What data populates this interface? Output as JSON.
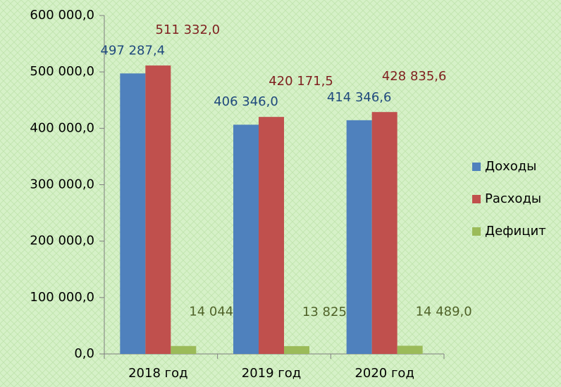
{
  "chart_data": {
    "type": "bar",
    "categories": [
      "2018 год",
      "2019 год",
      "2020 год"
    ],
    "series": [
      {
        "name": "Доходы",
        "color": "#4f81bd",
        "label_color": "#1f497d",
        "values": [
          497287.4,
          406346.0,
          414346.6
        ],
        "value_labels": [
          "497 287,4",
          "406 346,0",
          "414 346,6"
        ]
      },
      {
        "name": "Расходы",
        "color": "#c0504d",
        "label_color": "#7f1f1f",
        "values": [
          511332.0,
          420171.5,
          428835.6
        ],
        "value_labels": [
          "511 332,0",
          "420 171,5",
          "428 835,6"
        ]
      },
      {
        "name": "Дефицит",
        "color": "#9bbb59",
        "label_color": "#4f6228",
        "values": [
          14044.6,
          13825.5,
          14489.0
        ],
        "value_labels": [
          "14 044,6",
          "13 825,5",
          "14 489,0"
        ]
      }
    ],
    "ylim": [
      0,
      600000
    ],
    "yticks": [
      {
        "value": 0,
        "label": "0,0"
      },
      {
        "value": 100000,
        "label": "100 000,0"
      },
      {
        "value": 200000,
        "label": "200 000,0"
      },
      {
        "value": 300000,
        "label": "300 000,0"
      },
      {
        "value": 400000,
        "label": "400 000,0"
      },
      {
        "value": 500000,
        "label": "500 000,0"
      },
      {
        "value": 600000,
        "label": "600 000,0"
      }
    ],
    "legend": "right"
  }
}
